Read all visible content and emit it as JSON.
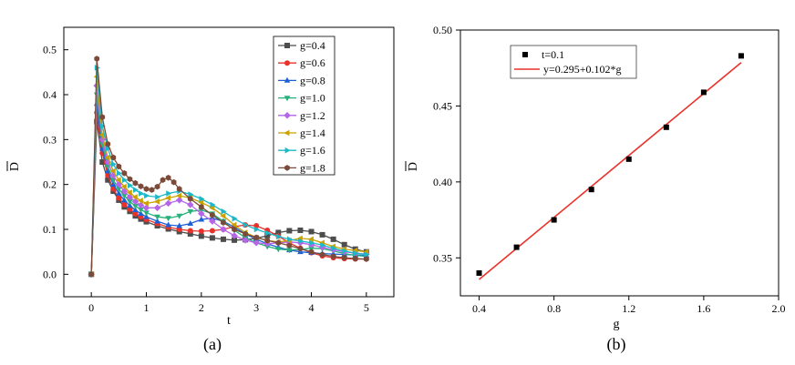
{
  "chart_data": [
    {
      "panel": "(a)",
      "type": "line",
      "markers": true,
      "xlabel": "t",
      "ylabel": "D",
      "ylabel_overline": true,
      "xlim": [
        -0.5,
        5.5
      ],
      "ylim": [
        -0.05,
        0.55
      ],
      "xticks": [
        "0",
        "1",
        "2",
        "3",
        "4",
        "5"
      ],
      "yticks": [
        "0.0",
        "0.1",
        "0.2",
        "0.3",
        "0.4",
        "0.5"
      ],
      "legend_position": "top-right",
      "caption": "(a)",
      "series": [
        {
          "name": "g=0.4",
          "color": "#4d4d4d",
          "marker": "square",
          "points": [
            [
              0,
              0
            ],
            [
              0.1,
              0.34
            ],
            [
              0.2,
              0.25
            ],
            [
              0.3,
              0.21
            ],
            [
              0.4,
              0.185
            ],
            [
              0.5,
              0.165
            ],
            [
              0.6,
              0.15
            ],
            [
              0.7,
              0.14
            ],
            [
              0.8,
              0.13
            ],
            [
              0.9,
              0.123
            ],
            [
              1.0,
              0.117
            ],
            [
              1.2,
              0.108
            ],
            [
              1.4,
              0.101
            ],
            [
              1.6,
              0.095
            ],
            [
              1.8,
              0.09
            ],
            [
              2.0,
              0.085
            ],
            [
              2.2,
              0.081
            ],
            [
              2.4,
              0.078
            ],
            [
              2.6,
              0.076
            ],
            [
              2.8,
              0.077
            ],
            [
              3.0,
              0.08
            ],
            [
              3.2,
              0.086
            ],
            [
              3.4,
              0.093
            ],
            [
              3.6,
              0.097
            ],
            [
              3.8,
              0.098
            ],
            [
              4.0,
              0.095
            ],
            [
              4.2,
              0.088
            ],
            [
              4.4,
              0.078
            ],
            [
              4.6,
              0.066
            ],
            [
              4.8,
              0.056
            ],
            [
              5.0,
              0.05
            ]
          ]
        },
        {
          "name": "g=0.6",
          "color": "#e8322a",
          "marker": "circle",
          "points": [
            [
              0,
              0
            ],
            [
              0.1,
              0.36
            ],
            [
              0.2,
              0.27
            ],
            [
              0.3,
              0.22
            ],
            [
              0.4,
              0.19
            ],
            [
              0.5,
              0.17
            ],
            [
              0.6,
              0.155
            ],
            [
              0.7,
              0.145
            ],
            [
              0.8,
              0.135
            ],
            [
              0.9,
              0.128
            ],
            [
              1.0,
              0.122
            ],
            [
              1.2,
              0.113
            ],
            [
              1.4,
              0.105
            ],
            [
              1.6,
              0.1
            ],
            [
              1.8,
              0.097
            ],
            [
              2.0,
              0.096
            ],
            [
              2.2,
              0.097
            ],
            [
              2.4,
              0.1
            ],
            [
              2.6,
              0.106
            ],
            [
              2.8,
              0.11
            ],
            [
              3.0,
              0.108
            ],
            [
              3.2,
              0.098
            ],
            [
              3.4,
              0.085
            ],
            [
              3.6,
              0.07
            ],
            [
              3.8,
              0.058
            ],
            [
              4.0,
              0.048
            ],
            [
              4.2,
              0.041
            ],
            [
              4.4,
              0.037
            ],
            [
              4.6,
              0.035
            ],
            [
              4.8,
              0.034
            ],
            [
              5.0,
              0.034
            ]
          ]
        },
        {
          "name": "g=0.8",
          "color": "#1f5fd6",
          "marker": "triangle-up",
          "points": [
            [
              0,
              0
            ],
            [
              0.1,
              0.38
            ],
            [
              0.2,
              0.28
            ],
            [
              0.3,
              0.23
            ],
            [
              0.4,
              0.2
            ],
            [
              0.5,
              0.18
            ],
            [
              0.6,
              0.165
            ],
            [
              0.7,
              0.153
            ],
            [
              0.8,
              0.143
            ],
            [
              0.9,
              0.135
            ],
            [
              1.0,
              0.128
            ],
            [
              1.2,
              0.118
            ],
            [
              1.4,
              0.11
            ],
            [
              1.6,
              0.108
            ],
            [
              1.8,
              0.113
            ],
            [
              2.0,
              0.122
            ],
            [
              2.2,
              0.125
            ],
            [
              2.4,
              0.118
            ],
            [
              2.6,
              0.105
            ],
            [
              2.8,
              0.09
            ],
            [
              3.0,
              0.078
            ],
            [
              3.2,
              0.068
            ],
            [
              3.4,
              0.06
            ],
            [
              3.6,
              0.054
            ],
            [
              3.8,
              0.05
            ],
            [
              4.0,
              0.048
            ],
            [
              4.2,
              0.046
            ],
            [
              4.4,
              0.045
            ],
            [
              4.6,
              0.044
            ],
            [
              4.8,
              0.043
            ],
            [
              5.0,
              0.042
            ]
          ]
        },
        {
          "name": "g=1.0",
          "color": "#27b07a",
          "marker": "triangle-down",
          "points": [
            [
              0,
              0
            ],
            [
              0.1,
              0.4
            ],
            [
              0.2,
              0.29
            ],
            [
              0.3,
              0.24
            ],
            [
              0.4,
              0.21
            ],
            [
              0.5,
              0.19
            ],
            [
              0.6,
              0.175
            ],
            [
              0.7,
              0.162
            ],
            [
              0.8,
              0.152
            ],
            [
              0.9,
              0.144
            ],
            [
              1.0,
              0.137
            ],
            [
              1.2,
              0.128
            ],
            [
              1.4,
              0.125
            ],
            [
              1.6,
              0.13
            ],
            [
              1.8,
              0.14
            ],
            [
              2.0,
              0.143
            ],
            [
              2.2,
              0.135
            ],
            [
              2.4,
              0.118
            ],
            [
              2.6,
              0.098
            ],
            [
              2.8,
              0.082
            ],
            [
              3.0,
              0.07
            ],
            [
              3.2,
              0.062
            ],
            [
              3.4,
              0.056
            ],
            [
              3.6,
              0.054
            ],
            [
              3.8,
              0.055
            ],
            [
              4.0,
              0.058
            ],
            [
              4.2,
              0.057
            ],
            [
              4.4,
              0.052
            ],
            [
              4.6,
              0.046
            ],
            [
              4.8,
              0.042
            ],
            [
              5.0,
              0.04
            ]
          ]
        },
        {
          "name": "g=1.2",
          "color": "#b565e8",
          "marker": "diamond",
          "points": [
            [
              0,
              0
            ],
            [
              0.1,
              0.42
            ],
            [
              0.2,
              0.3
            ],
            [
              0.3,
              0.25
            ],
            [
              0.4,
              0.22
            ],
            [
              0.5,
              0.2
            ],
            [
              0.6,
              0.185
            ],
            [
              0.7,
              0.172
            ],
            [
              0.8,
              0.162
            ],
            [
              0.9,
              0.154
            ],
            [
              1.0,
              0.148
            ],
            [
              1.2,
              0.148
            ],
            [
              1.4,
              0.158
            ],
            [
              1.6,
              0.165
            ],
            [
              1.8,
              0.155
            ],
            [
              2.0,
              0.135
            ],
            [
              2.2,
              0.118
            ],
            [
              2.4,
              0.1
            ],
            [
              2.6,
              0.086
            ],
            [
              2.8,
              0.076
            ],
            [
              3.0,
              0.07
            ],
            [
              3.2,
              0.068
            ],
            [
              3.4,
              0.07
            ],
            [
              3.6,
              0.072
            ],
            [
              3.8,
              0.07
            ],
            [
              4.0,
              0.066
            ],
            [
              4.2,
              0.06
            ],
            [
              4.4,
              0.055
            ],
            [
              4.6,
              0.05
            ],
            [
              4.8,
              0.047
            ],
            [
              5.0,
              0.045
            ]
          ]
        },
        {
          "name": "g=1.4",
          "color": "#c9a200",
          "marker": "triangle-left",
          "points": [
            [
              0,
              0
            ],
            [
              0.1,
              0.44
            ],
            [
              0.2,
              0.31
            ],
            [
              0.3,
              0.26
            ],
            [
              0.4,
              0.23
            ],
            [
              0.5,
              0.21
            ],
            [
              0.6,
              0.195
            ],
            [
              0.7,
              0.182
            ],
            [
              0.8,
              0.172
            ],
            [
              0.9,
              0.164
            ],
            [
              1.0,
              0.158
            ],
            [
              1.2,
              0.162
            ],
            [
              1.4,
              0.17
            ],
            [
              1.6,
              0.175
            ],
            [
              1.8,
              0.17
            ],
            [
              2.0,
              0.16
            ],
            [
              2.2,
              0.148
            ],
            [
              2.4,
              0.13
            ],
            [
              2.6,
              0.11
            ],
            [
              2.8,
              0.093
            ],
            [
              3.0,
              0.082
            ],
            [
              3.2,
              0.075
            ],
            [
              3.4,
              0.072
            ],
            [
              3.6,
              0.075
            ],
            [
              3.8,
              0.08
            ],
            [
              4.0,
              0.078
            ],
            [
              4.2,
              0.07
            ],
            [
              4.4,
              0.062
            ],
            [
              4.6,
              0.056
            ],
            [
              4.8,
              0.053
            ],
            [
              5.0,
              0.05
            ]
          ]
        },
        {
          "name": "g=1.6",
          "color": "#1cb8c8",
          "marker": "triangle-right",
          "points": [
            [
              0,
              0
            ],
            [
              0.1,
              0.46
            ],
            [
              0.2,
              0.33
            ],
            [
              0.3,
              0.28
            ],
            [
              0.4,
              0.245
            ],
            [
              0.5,
              0.225
            ],
            [
              0.6,
              0.21
            ],
            [
              0.7,
              0.198
            ],
            [
              0.8,
              0.188
            ],
            [
              0.9,
              0.18
            ],
            [
              1.0,
              0.175
            ],
            [
              1.2,
              0.172
            ],
            [
              1.4,
              0.18
            ],
            [
              1.6,
              0.185
            ],
            [
              1.8,
              0.178
            ],
            [
              2.0,
              0.168
            ],
            [
              2.2,
              0.155
            ],
            [
              2.4,
              0.14
            ],
            [
              2.6,
              0.124
            ],
            [
              2.8,
              0.11
            ],
            [
              3.0,
              0.1
            ],
            [
              3.2,
              0.092
            ],
            [
              3.4,
              0.084
            ],
            [
              3.6,
              0.078
            ],
            [
              3.8,
              0.074
            ],
            [
              4.0,
              0.07
            ],
            [
              4.2,
              0.065
            ],
            [
              4.4,
              0.058
            ],
            [
              4.6,
              0.052
            ],
            [
              4.8,
              0.047
            ],
            [
              5.0,
              0.044
            ]
          ]
        },
        {
          "name": "g=1.8",
          "color": "#7a4a3a",
          "marker": "hexagon",
          "points": [
            [
              0,
              0
            ],
            [
              0.1,
              0.48
            ],
            [
              0.2,
              0.35
            ],
            [
              0.3,
              0.29
            ],
            [
              0.4,
              0.26
            ],
            [
              0.5,
              0.24
            ],
            [
              0.6,
              0.225
            ],
            [
              0.7,
              0.212
            ],
            [
              0.8,
              0.203
            ],
            [
              0.9,
              0.196
            ],
            [
              1.0,
              0.19
            ],
            [
              1.1,
              0.188
            ],
            [
              1.2,
              0.195
            ],
            [
              1.3,
              0.21
            ],
            [
              1.4,
              0.215
            ],
            [
              1.5,
              0.205
            ],
            [
              1.6,
              0.19
            ],
            [
              1.8,
              0.168
            ],
            [
              2.0,
              0.15
            ],
            [
              2.2,
              0.132
            ],
            [
              2.4,
              0.115
            ],
            [
              2.6,
              0.1
            ],
            [
              2.8,
              0.09
            ],
            [
              3.0,
              0.082
            ],
            [
              3.2,
              0.075
            ],
            [
              3.4,
              0.07
            ],
            [
              3.6,
              0.064
            ],
            [
              3.8,
              0.057
            ],
            [
              4.0,
              0.05
            ],
            [
              4.2,
              0.044
            ],
            [
              4.4,
              0.04
            ],
            [
              4.6,
              0.037
            ],
            [
              4.8,
              0.035
            ],
            [
              5.0,
              0.034
            ]
          ]
        }
      ]
    },
    {
      "panel": "(b)",
      "type": "scatter",
      "xlabel": "g",
      "ylabel": "D",
      "ylabel_overline": true,
      "xlim": [
        0.3,
        2.0
      ],
      "ylim": [
        0.325,
        0.5
      ],
      "xticks": [
        "0.4",
        "0.8",
        "1.2",
        "1.6",
        "2.0"
      ],
      "yticks": [
        "0.35",
        "0.40",
        "0.45",
        "0.50"
      ],
      "legend_position": "top-left",
      "caption": "(b)",
      "scatter": {
        "name": "t=0.1",
        "color": "#000000",
        "marker": "square",
        "x": [
          0.4,
          0.6,
          0.8,
          1.0,
          1.2,
          1.4,
          1.6,
          1.8
        ],
        "y": [
          0.34,
          0.357,
          0.375,
          0.395,
          0.415,
          0.436,
          0.459,
          0.483
        ]
      },
      "fit": {
        "name": "y=0.295+0.102*g",
        "color": "#e8322a",
        "intercept": 0.295,
        "slope": 0.102,
        "x_range": [
          0.4,
          1.8
        ]
      }
    }
  ]
}
